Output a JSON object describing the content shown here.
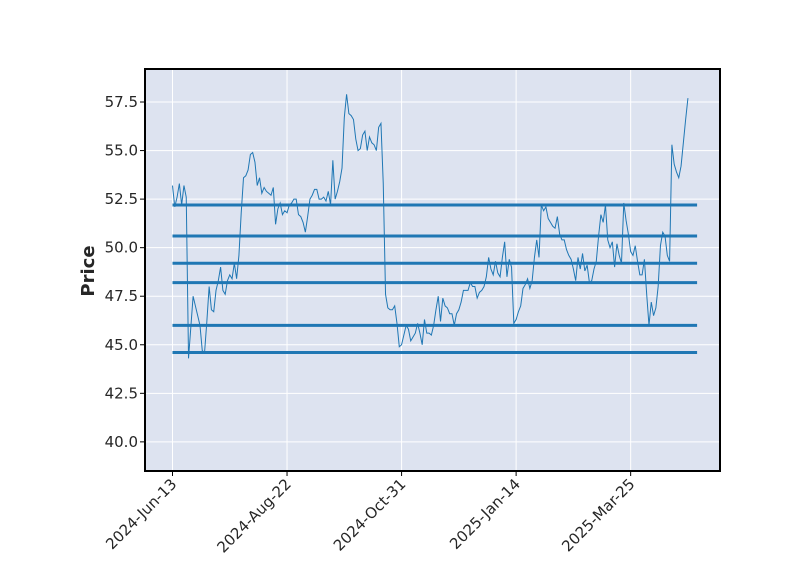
{
  "chart_data": {
    "type": "line",
    "title": "",
    "xlabel": "",
    "ylabel": "Price",
    "x_ticks": [
      "2024-Jun-13",
      "2024-Aug-22",
      "2024-Oct-31",
      "2025-Jan-14",
      "2025-Mar-25"
    ],
    "x_tick_positions": [
      0,
      50,
      100,
      150,
      200
    ],
    "xlim": [
      -12,
      239
    ],
    "ylim": [
      38.5,
      59.2
    ],
    "y_ticks": [
      40.0,
      42.5,
      45.0,
      47.5,
      50.0,
      52.5,
      55.0,
      57.5
    ],
    "y_tick_labels": [
      "40.0",
      "42.5",
      "45.0",
      "47.5",
      "50.0",
      "52.5",
      "55.0",
      "57.5"
    ],
    "grid": true,
    "background": "#dde3f0",
    "line_color": "#1f77b4",
    "series": [
      {
        "values": [
          53.2,
          52.1,
          52.6,
          53.3,
          52.2,
          53.2,
          52.6,
          44.3,
          45.9,
          47.5,
          47.0,
          46.5,
          46.0,
          44.7,
          44.6,
          46.2,
          48.0,
          46.8,
          46.7,
          47.8,
          48.3,
          49.0,
          47.8,
          47.6,
          48.3,
          48.6,
          48.4,
          49.2,
          48.4,
          49.6,
          51.8,
          53.6,
          53.7,
          54.0,
          54.8,
          54.9,
          54.4,
          53.2,
          53.6,
          52.8,
          53.1,
          52.9,
          52.8,
          52.7,
          53.1,
          51.2,
          52.0,
          52.3,
          51.7,
          51.9,
          51.8,
          52.2,
          52.3,
          52.5,
          52.5,
          51.7,
          51.6,
          51.3,
          50.8,
          51.6,
          52.5,
          52.7,
          53.0,
          53.0,
          52.5,
          52.5,
          52.6,
          52.4,
          52.9,
          52.2,
          54.5,
          52.5,
          52.9,
          53.4,
          54.1,
          56.7,
          57.9,
          56.9,
          56.8,
          56.6,
          55.6,
          55.0,
          55.1,
          55.8,
          56.0,
          55.0,
          55.7,
          55.4,
          55.3,
          55.0,
          56.2,
          56.4,
          53.3,
          47.6,
          46.9,
          46.8,
          46.8,
          47.0,
          46.1,
          44.9,
          45.0,
          45.5,
          46.0,
          45.8,
          45.2,
          45.4,
          45.6,
          46.1,
          45.6,
          45.0,
          46.3,
          45.6,
          45.6,
          45.5,
          46.0,
          46.8,
          47.5,
          46.2,
          47.4,
          47.0,
          46.9,
          46.6,
          46.6,
          46.0,
          46.6,
          46.8,
          47.2,
          47.8,
          47.8,
          47.8,
          48.2,
          48.0,
          48.0,
          47.4,
          47.7,
          47.8,
          48.0,
          48.5,
          49.5,
          48.9,
          48.6,
          49.3,
          48.7,
          48.5,
          49.5,
          50.3,
          48.5,
          49.4,
          49.0,
          46.1,
          46.3,
          46.7,
          47.0,
          47.9,
          48.1,
          48.4,
          47.9,
          48.3,
          49.5,
          50.4,
          49.5,
          52.2,
          51.9,
          52.1,
          51.5,
          51.3,
          51.1,
          51.0,
          51.6,
          50.7,
          50.4,
          50.4,
          49.9,
          49.6,
          49.4,
          48.9,
          48.3,
          49.5,
          48.9,
          49.7,
          48.8,
          49.1,
          48.2,
          48.3,
          48.9,
          49.3,
          50.6,
          51.7,
          51.3,
          52.2,
          50.4,
          50.0,
          50.3,
          49.0,
          50.2,
          49.6,
          49.2,
          52.3,
          51.4,
          50.7,
          49.8,
          49.6,
          50.1,
          49.3,
          48.6,
          48.6,
          49.4,
          47.6,
          46.0,
          47.2,
          46.5,
          46.9,
          48.0,
          50.1,
          50.8,
          50.6,
          49.6,
          49.3,
          55.3,
          54.3,
          53.9,
          53.6,
          54.2,
          55.4,
          56.6,
          57.7
        ]
      }
    ],
    "hlines": [
      52.2,
      50.6,
      49.2,
      48.2,
      46.0,
      44.6
    ],
    "hline_xrange": [
      0,
      229
    ]
  }
}
